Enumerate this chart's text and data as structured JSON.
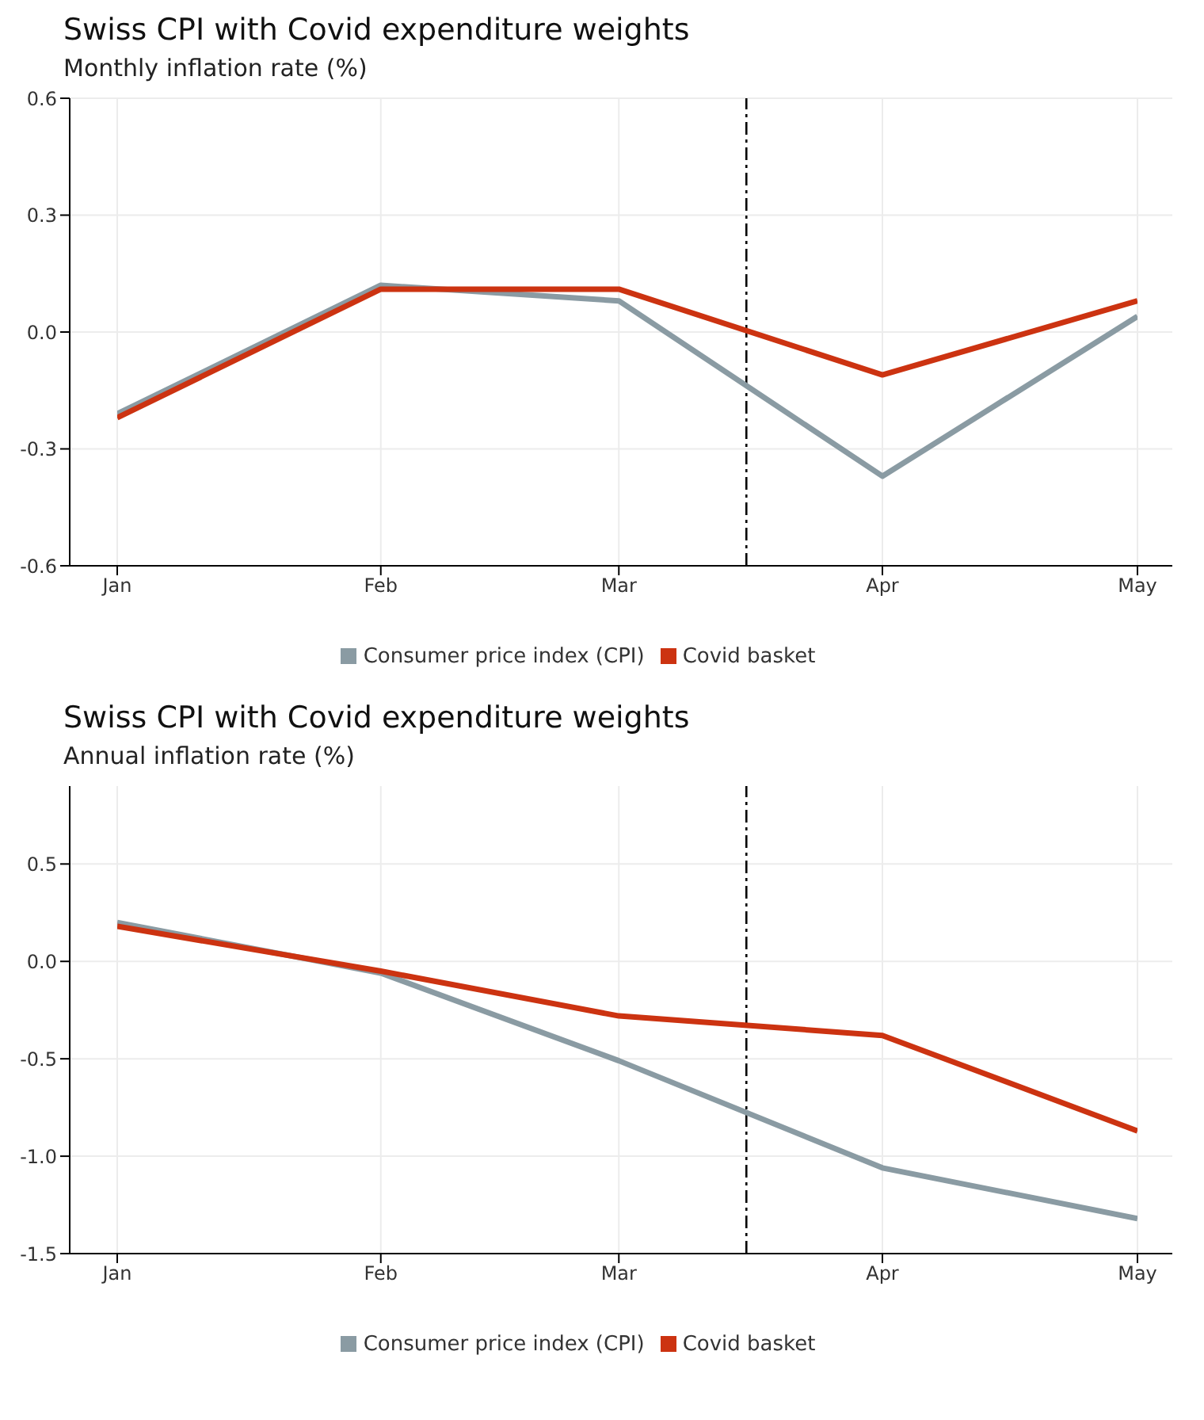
{
  "chart_data": [
    {
      "type": "line",
      "title": "Swiss CPI with Covid expenditure weights",
      "subtitle": "Monthly inflation rate (%)",
      "x": [
        "--01-01",
        "--02-01",
        "--03-01",
        "--04-01",
        "--05-01"
      ],
      "series": [
        {
          "name": "Consumer price index (CPI)",
          "color": "#8a9ba3",
          "values": [
            -0.21,
            0.12,
            0.08,
            -0.37,
            0.04
          ]
        },
        {
          "name": "Covid basket",
          "color": "#cc3311",
          "values": [
            -0.22,
            0.11,
            0.11,
            -0.11,
            0.08
          ]
        }
      ],
      "xlim": [
        "--01-01",
        "--05-01"
      ],
      "xticks": [
        {
          "value": "--01-01",
          "label": "Jan"
        },
        {
          "value": "--02-01",
          "label": "Feb"
        },
        {
          "value": "--03-01",
          "label": "Mar"
        },
        {
          "value": "--04-01",
          "label": "Apr"
        },
        {
          "value": "--05-01",
          "label": "May"
        }
      ],
      "ylim": [
        -0.6,
        0.6
      ],
      "yticks": [
        {
          "value": -0.6,
          "label": "-0.6"
        },
        {
          "value": -0.3,
          "label": "-0.3"
        },
        {
          "value": 0,
          "label": "0.0"
        },
        {
          "value": 0.3,
          "label": "0.3"
        },
        {
          "value": 0.6,
          "label": "0.6"
        }
      ],
      "ref_lines": [
        {
          "axis": "x",
          "value": "--03-16",
          "color": "#000000",
          "line_style": "dashed"
        }
      ],
      "grid": true,
      "legend": "bottom",
      "line_style": "solid",
      "marker": "none"
    },
    {
      "type": "line",
      "title": "Swiss CPI with Covid expenditure weights",
      "subtitle": "Annual inflation rate (%)",
      "x": [
        "--01-01",
        "--02-01",
        "--03-01",
        "--04-01",
        "--05-01"
      ],
      "series": [
        {
          "name": "Consumer price index (CPI)",
          "color": "#8a9ba3",
          "values": [
            0.2,
            -0.06,
            -0.51,
            -1.06,
            -1.32
          ]
        },
        {
          "name": "Covid basket",
          "color": "#cc3311",
          "values": [
            0.18,
            -0.05,
            -0.28,
            -0.38,
            -0.87
          ]
        }
      ],
      "xlim": [
        "--01-01",
        "--05-01"
      ],
      "xticks": [
        {
          "value": "--01-01",
          "label": "Jan"
        },
        {
          "value": "--02-01",
          "label": "Feb"
        },
        {
          "value": "--03-01",
          "label": "Mar"
        },
        {
          "value": "--04-01",
          "label": "Apr"
        },
        {
          "value": "--05-01",
          "label": "May"
        }
      ],
      "ylim": [
        -1.5,
        0.9
      ],
      "yticks": [
        {
          "value": -1.5,
          "label": "-1.5"
        },
        {
          "value": -1,
          "label": "-1.0"
        },
        {
          "value": -0.5,
          "label": "-0.5"
        },
        {
          "value": 0,
          "label": "0.0"
        },
        {
          "value": 0.5,
          "label": "0.5"
        }
      ],
      "ref_lines": [
        {
          "axis": "x",
          "value": "--03-16",
          "color": "#000000",
          "line_style": "dashed"
        }
      ],
      "grid": true,
      "legend": "bottom",
      "line_style": "solid",
      "marker": "none"
    }
  ]
}
